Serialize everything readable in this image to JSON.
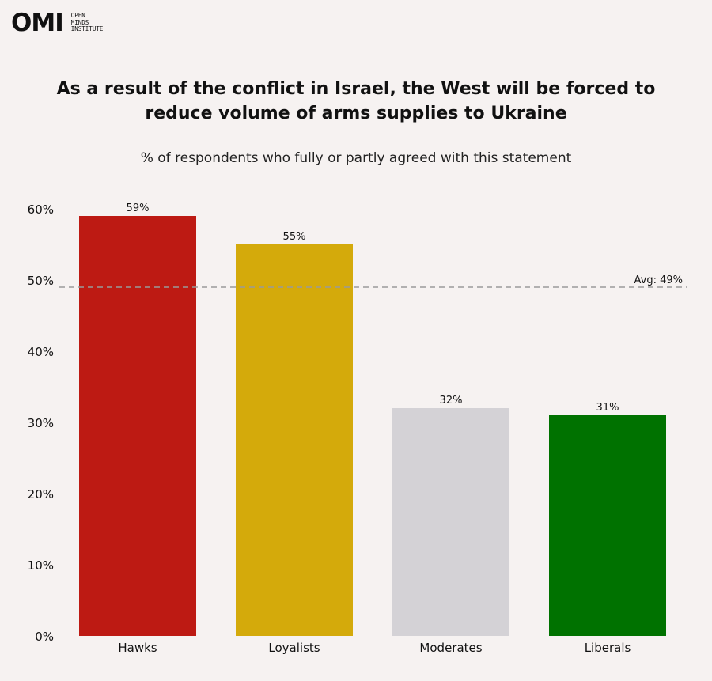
{
  "header": {
    "logo_mark": "OMI",
    "logo_lines": [
      "OPEN",
      "MINDS",
      "INSTITUTE"
    ]
  },
  "chart_data": {
    "type": "bar",
    "title": "As a result of the conflict in Israel, the West will be forced to reduce volume of arms supplies to Ukraine",
    "subtitle": "% of respondents who fully or partly agreed with this statement",
    "categories": [
      "Hawks",
      "Loyalists",
      "Moderates",
      "Liberals"
    ],
    "values": [
      59,
      55,
      32,
      31
    ],
    "value_labels": [
      "59%",
      "55%",
      "32%",
      "31%"
    ],
    "colors": [
      "#bd1a13",
      "#d4aa0b",
      "#d4d2d6",
      "#007200"
    ],
    "ylim": [
      0,
      60
    ],
    "yticks": [
      0,
      10,
      20,
      30,
      40,
      50,
      60
    ],
    "ytick_labels": [
      "0%",
      "10%",
      "20%",
      "30%",
      "40%",
      "50%",
      "60%"
    ],
    "xlabel": "",
    "ylabel": "",
    "grid": false,
    "legend": "none",
    "reference_line": {
      "value": 49,
      "label": "Avg: 49%",
      "style": "dashed",
      "color": "#9a9a9a"
    }
  }
}
